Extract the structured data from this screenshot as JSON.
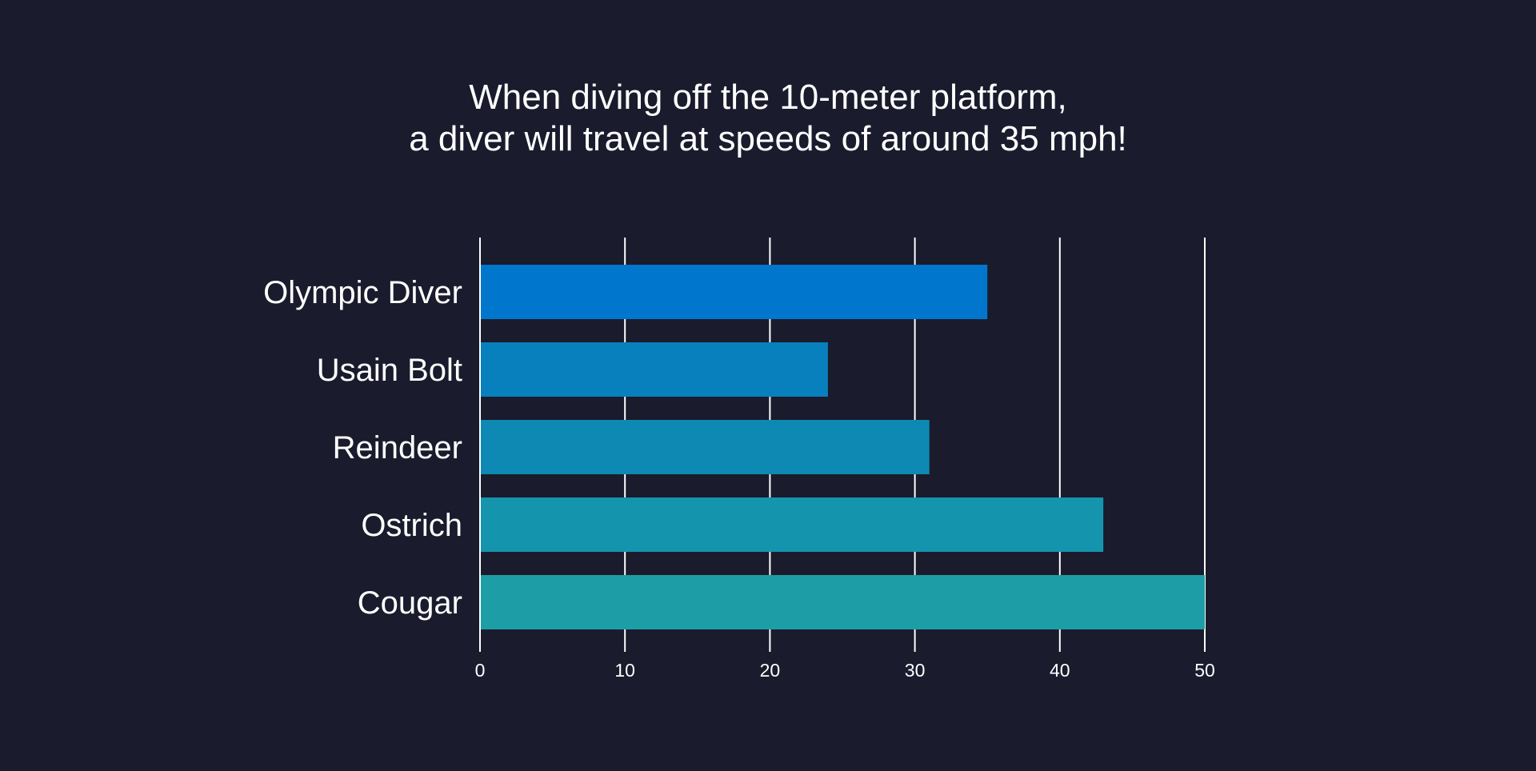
{
  "chart_data": {
    "type": "bar",
    "orientation": "horizontal",
    "title_lines": [
      "When diving off the 10-meter platform,",
      "a diver will travel at speeds of around 35 mph!"
    ],
    "categories": [
      "Olympic Diver",
      "Usain Bolt",
      "Reindeer",
      "Ostrich",
      "Cougar"
    ],
    "values": [
      35,
      24,
      31,
      43,
      50
    ],
    "xlim": [
      0,
      50
    ],
    "x_ticks": [
      0,
      10,
      20,
      30,
      40,
      50
    ],
    "x_tick_labels": [
      "0",
      "10",
      "20",
      "30",
      "40",
      "50"
    ],
    "grid": "vertical",
    "legend": "none",
    "bar_colors": [
      "#0077cc",
      "#0880be",
      "#0e89b3",
      "#1594ae",
      "#1d9da6"
    ],
    "background_color": "#1a1b2c",
    "text_color": "#ffffff"
  }
}
